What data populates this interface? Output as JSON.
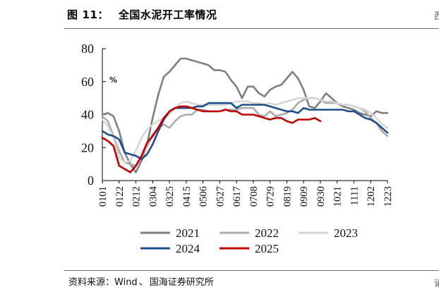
{
  "header": {
    "figure_label": "图",
    "figure_number": "11：",
    "title": "全国水泥开工率情况",
    "corner_mark": "西"
  },
  "footer": {
    "source_prefix": "资料来源：",
    "source_name": "Wind",
    "source_sep": "、",
    "source_org": "国海证券研究所",
    "corner_mark": "诸"
  },
  "colors": {
    "2021": "#7f7f7f",
    "2022": "#ababab",
    "2023": "#d6d6d6",
    "2024": "#1f4e8c",
    "2025": "#c00000"
  },
  "chart_data": {
    "type": "line",
    "title": "全国水泥开工率情况",
    "unit_label": "%",
    "xlabel": "",
    "ylabel": "",
    "ylim": [
      0,
      80
    ],
    "yticks": [
      0,
      20,
      40,
      60,
      80
    ],
    "xticks": [
      "0101",
      "0122",
      "0212",
      "0304",
      "0325",
      "0415",
      "0506",
      "0527",
      "0617",
      "0708",
      "0729",
      "0819",
      "0909",
      "0930",
      "1021",
      "1111",
      "1202",
      "1223"
    ],
    "x_points_per_year": 52,
    "legend_position": "bottom",
    "series": [
      {
        "name": "2021",
        "values": [
          40,
          41,
          39,
          30,
          17,
          10,
          5,
          12,
          22,
          38,
          52,
          63,
          66,
          70,
          74,
          74,
          73,
          72,
          71,
          70,
          67,
          67,
          66,
          61,
          57,
          50,
          57,
          57,
          53,
          51,
          55,
          57,
          58,
          62,
          66,
          62,
          55,
          45,
          44,
          48,
          53,
          50,
          47,
          45,
          44,
          43,
          41,
          40,
          39,
          42,
          41,
          41
        ]
      },
      {
        "name": "2022",
        "values": [
          39,
          36,
          27,
          18,
          11,
          10,
          9,
          14,
          21,
          28,
          32,
          34,
          32,
          36,
          39,
          40,
          40,
          43,
          43,
          42,
          42,
          42,
          43,
          43,
          43,
          44,
          44,
          44,
          40,
          39,
          42,
          39,
          40,
          41,
          43,
          47,
          49,
          50,
          50,
          49,
          47,
          47,
          47,
          46,
          46,
          45,
          44,
          42,
          38,
          35,
          30,
          27
        ]
      },
      {
        "name": "2023",
        "values": [
          37,
          33,
          26,
          14,
          11,
          12,
          18,
          26,
          31,
          34,
          36,
          38,
          40,
          44,
          47,
          48,
          47,
          46,
          46,
          46,
          46,
          46,
          46,
          47,
          48,
          48,
          48,
          47,
          47,
          46,
          47,
          46,
          47,
          48,
          49,
          50,
          50,
          50,
          50,
          49,
          48,
          48,
          47,
          46,
          46,
          45,
          44,
          43,
          41,
          38,
          34,
          32
        ]
      },
      {
        "name": "2024",
        "values": [
          30,
          28,
          27,
          25,
          17,
          16,
          15,
          13,
          16,
          22,
          30,
          37,
          42,
          44,
          44,
          44,
          44,
          45,
          45,
          47,
          47,
          47,
          47,
          47,
          44,
          46,
          46,
          46,
          46,
          46,
          45,
          44,
          43,
          42,
          42,
          41,
          44,
          43,
          43,
          43,
          43,
          43,
          43,
          43,
          42,
          42,
          40,
          38,
          37,
          35,
          32,
          29
        ]
      },
      {
        "name": "2025",
        "values": [
          26,
          24,
          21,
          9,
          7,
          5,
          9,
          15,
          23,
          27,
          32,
          38,
          42,
          44,
          45,
          45,
          44,
          43,
          42,
          42,
          42,
          42,
          43,
          42,
          42,
          40,
          40,
          40,
          39,
          38,
          37,
          38,
          38,
          36,
          35,
          37,
          37,
          37,
          38,
          36
        ]
      }
    ]
  }
}
